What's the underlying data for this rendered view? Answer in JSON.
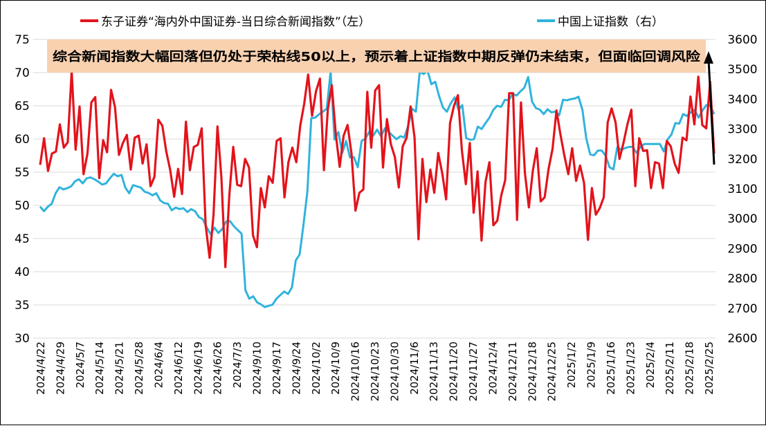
{
  "chart_data": {
    "type": "line",
    "title": "",
    "legend": {
      "position": "top",
      "items": [
        {
          "name": "东子证券“海内外中国证券-当日综合新闻指数”（左）",
          "color": "#e3131b",
          "axis": "left"
        },
        {
          "name": "中国上证指数（右）",
          "color": "#2fb3dc",
          "axis": "right"
        }
      ]
    },
    "annotation": {
      "text": "综合新闻指数大幅回落但仍处于荣枯线50以上，预示着上证指数中期反弹仍未结束，但面临回调风险",
      "background": "#f8d1b0"
    },
    "y_left": {
      "range": [
        30,
        75
      ],
      "ticks": [
        "30",
        "35",
        "40",
        "45",
        "50",
        "55",
        "60",
        "65",
        "70",
        "75"
      ]
    },
    "y_right": {
      "range": [
        2600,
        3600
      ],
      "ticks": [
        "2600",
        "2700",
        "2800",
        "2900",
        "3000",
        "3100",
        "3200",
        "3300",
        "3400",
        "3500",
        "3600"
      ]
    },
    "x_tick_labels": [
      "2024/4/22",
      "2024/4/29",
      "2024/5/7",
      "2024/5/14",
      "2024/5/21",
      "2024/5/28",
      "2024/6/4",
      "2024/6/12",
      "2024/6/19",
      "2024/6/26",
      "2024/7/3",
      "2024/9/10",
      "2024/9/17",
      "2024/9/24",
      "2024/10/2",
      "2024/10/9",
      "2024/10/16",
      "2024/10/23",
      "2024/10/30",
      "2024/11/6",
      "2024/11/13",
      "2024/11/20",
      "2024/11/27",
      "2024/12/4",
      "2024/12/11",
      "2024/12/18",
      "2024/12/25",
      "2025/1/2",
      "2025/1/9",
      "2025/1/16",
      "2025/1/23",
      "2025/2/4",
      "2025/2/11",
      "2025/2/18",
      "2025/2/25"
    ],
    "grid": "horizontal",
    "series": [
      {
        "name": "东子证券“海内外中国证券-当日综合新闻指数”（左）",
        "color": "#e3131b",
        "axis": "left",
        "values": [
          56.1,
          60.1,
          55.2,
          57.8,
          58.1,
          62.2,
          58.7,
          59.5,
          70.2,
          58.4,
          64.9,
          54.7,
          57.8,
          65.5,
          66.3,
          54.1,
          59.8,
          58.0,
          67.4,
          64.8,
          57.6,
          59.4,
          60.6,
          55.4,
          60.2,
          60.5,
          56.3,
          59.2,
          52.9,
          54.3,
          62.9,
          62.0,
          58.1,
          55.3,
          51.3,
          55.5,
          51.7,
          62.6,
          55.3,
          58.8,
          59.1,
          61.6,
          47.0,
          42.1,
          48.6,
          61.9,
          54.1,
          40.7,
          51.5,
          58.8,
          53.1,
          52.9,
          57.0,
          55.7,
          45.5,
          43.7,
          52.6,
          49.7,
          54.4,
          53.4,
          59.7,
          60.1,
          51.2,
          56.5,
          58.7,
          56.5,
          62.0,
          65.3,
          69.7,
          63.5,
          67.2,
          69.1,
          55.3,
          64.5,
          68.1,
          60.8,
          55.8,
          60.5,
          62.1,
          57.8,
          49.2,
          51.9,
          52.4,
          67.1,
          58.7,
          67.3,
          68.1,
          55.7,
          63.0,
          59.2,
          57.3,
          52.7,
          58.9,
          60.2,
          64.9,
          60.2,
          44.9,
          57.0,
          50.5,
          55.4,
          51.9,
          57.9,
          54.9,
          50.9,
          62.4,
          65.0,
          66.6,
          58.3,
          53.2,
          59.4,
          48.9,
          55.1,
          44.7,
          53.5,
          56.5,
          47.0,
          47.7,
          51.5,
          53.8,
          66.9,
          66.9,
          47.8,
          65.5,
          54.9,
          49.7,
          55.2,
          58.6,
          50.6,
          51.2,
          55.5,
          58.5,
          64.3,
          60.7,
          57.5,
          54.7,
          58.6,
          53.7,
          56.0,
          53.4,
          44.8,
          52.6,
          48.6,
          49.6,
          51.2,
          62.5,
          64.6,
          62.5,
          57.0,
          59.4,
          62.2,
          64.4,
          52.9,
          60.1,
          58.2,
          58.3,
          52.6,
          56.5,
          56.3,
          52.6,
          59.7,
          58.9,
          56.3,
          54.9,
          60.2,
          59.8,
          66.4,
          62.2,
          69.4,
          62.1,
          61.6,
          68.6,
          57.8
        ]
      },
      {
        "name": "中国上证指数（右）",
        "color": "#2fb3dc",
        "axis": "right",
        "values": [
          3040,
          3025,
          3040,
          3050,
          3085,
          3105,
          3098,
          3102,
          3108,
          3125,
          3132,
          3118,
          3135,
          3138,
          3132,
          3124,
          3114,
          3118,
          3135,
          3150,
          3142,
          3146,
          3104,
          3085,
          3112,
          3108,
          3104,
          3090,
          3086,
          3078,
          3085,
          3061,
          3052,
          3050,
          3028,
          3037,
          3032,
          3035,
          3022,
          3032,
          3025,
          3005,
          2998,
          2971,
          2948,
          2970,
          2952,
          2965,
          2990,
          2992,
          2975,
          2962,
          2950,
          2760,
          2732,
          2740,
          2720,
          2713,
          2704,
          2708,
          2712,
          2732,
          2744,
          2756,
          2748,
          2770,
          2860,
          2880,
          2980,
          3090,
          3336,
          3338,
          3349,
          3358,
          3368,
          3492,
          3265,
          3290,
          3220,
          3260,
          3205,
          3206,
          3172,
          3260,
          3268,
          3292,
          3278,
          3298,
          3276,
          3302,
          3290,
          3278,
          3266,
          3276,
          3272,
          3310,
          3368,
          3358,
          3492,
          3484,
          3496,
          3450,
          3458,
          3410,
          3372,
          3358,
          3386,
          3406,
          3364,
          3380,
          3270,
          3264,
          3266,
          3308,
          3300,
          3320,
          3338,
          3364,
          3378,
          3374,
          3398,
          3396,
          3418,
          3412,
          3426,
          3438,
          3474,
          3392,
          3370,
          3365,
          3350,
          3366,
          3356,
          3358,
          3346,
          3398,
          3396,
          3400,
          3402,
          3408,
          3364,
          3268,
          3215,
          3212,
          3228,
          3228,
          3210,
          3172,
          3165,
          3240,
          3230,
          3236,
          3240,
          3240,
          3220,
          3240,
          3250,
          3250,
          3250,
          3250,
          3250,
          3225,
          3265,
          3282,
          3320,
          3318,
          3350,
          3344,
          3356,
          3364,
          3338,
          3362,
          3380,
          3378,
          3350
        ]
      }
    ]
  }
}
